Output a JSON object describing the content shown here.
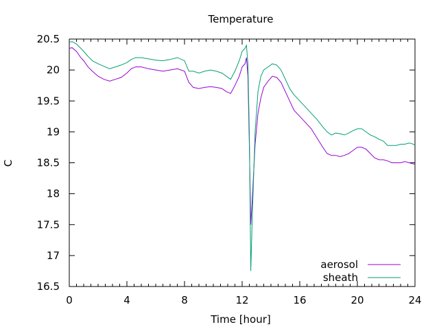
{
  "chart_data": {
    "type": "line",
    "title": "Temperature",
    "xlabel": "Time [hour]",
    "ylabel": "C",
    "xlim": [
      0,
      24
    ],
    "ylim": [
      16.5,
      20.5
    ],
    "x_ticks": [
      0,
      4,
      8,
      12,
      16,
      20,
      24
    ],
    "y_ticks": [
      16.5,
      17,
      17.5,
      18,
      18.5,
      19,
      19.5,
      20,
      20.5
    ],
    "legend_position": "bottom-right",
    "grid": false,
    "series": [
      {
        "name": "aerosol",
        "color": "#9400d3",
        "x": [
          0,
          0.2,
          0.5,
          0.8,
          1.0,
          1.3,
          1.6,
          2.0,
          2.4,
          2.8,
          3.2,
          3.6,
          4.0,
          4.3,
          4.6,
          5.0,
          5.5,
          6.0,
          6.5,
          7.0,
          7.5,
          8.0,
          8.3,
          8.6,
          9.0,
          9.4,
          9.8,
          10.2,
          10.6,
          10.9,
          11.2,
          11.5,
          11.8,
          12.0,
          12.2,
          12.3,
          12.4,
          12.5,
          12.6,
          12.7,
          12.9,
          13.1,
          13.3,
          13.5,
          13.8,
          14.1,
          14.4,
          14.7,
          15.0,
          15.3,
          15.6,
          16.0,
          16.4,
          16.8,
          17.2,
          17.6,
          17.9,
          18.2,
          18.5,
          18.8,
          19.1,
          19.4,
          19.7,
          20.0,
          20.3,
          20.6,
          20.9,
          21.2,
          21.5,
          21.8,
          22.1,
          22.4,
          22.7,
          23.0,
          23.3,
          23.6,
          23.9,
          24.0
        ],
        "values": [
          20.35,
          20.36,
          20.3,
          20.2,
          20.15,
          20.05,
          19.98,
          19.9,
          19.85,
          19.82,
          19.85,
          19.88,
          19.95,
          20.02,
          20.05,
          20.05,
          20.02,
          20.0,
          19.98,
          20.0,
          20.02,
          19.98,
          19.8,
          19.72,
          19.7,
          19.72,
          19.73,
          19.72,
          19.7,
          19.65,
          19.62,
          19.75,
          19.9,
          20.05,
          20.1,
          20.2,
          19.9,
          18.8,
          17.5,
          17.9,
          18.8,
          19.3,
          19.55,
          19.72,
          19.82,
          19.9,
          19.88,
          19.8,
          19.65,
          19.5,
          19.35,
          19.25,
          19.15,
          19.05,
          18.9,
          18.75,
          18.65,
          18.62,
          18.62,
          18.6,
          18.62,
          18.65,
          18.7,
          18.75,
          18.75,
          18.72,
          18.65,
          18.58,
          18.55,
          18.55,
          18.53,
          18.5,
          18.5,
          18.5,
          18.52,
          18.5,
          18.48,
          18.48
        ]
      },
      {
        "name": "sheath",
        "color": "#009e73",
        "x": [
          0,
          0.2,
          0.5,
          0.8,
          1.0,
          1.3,
          1.6,
          2.0,
          2.4,
          2.8,
          3.2,
          3.6,
          4.0,
          4.3,
          4.6,
          5.0,
          5.5,
          6.0,
          6.5,
          7.0,
          7.5,
          8.0,
          8.3,
          8.6,
          9.0,
          9.4,
          9.8,
          10.2,
          10.6,
          10.9,
          11.2,
          11.5,
          11.8,
          12.0,
          12.2,
          12.3,
          12.4,
          12.5,
          12.6,
          12.7,
          12.9,
          13.1,
          13.3,
          13.5,
          13.8,
          14.1,
          14.4,
          14.7,
          15.0,
          15.3,
          15.6,
          16.0,
          16.4,
          16.8,
          17.2,
          17.6,
          17.9,
          18.2,
          18.5,
          18.8,
          19.1,
          19.4,
          19.7,
          20.0,
          20.3,
          20.6,
          20.9,
          21.2,
          21.5,
          21.8,
          22.1,
          22.4,
          22.7,
          23.0,
          23.3,
          23.6,
          23.9,
          24.0
        ],
        "values": [
          20.45,
          20.46,
          20.42,
          20.35,
          20.3,
          20.22,
          20.15,
          20.1,
          20.06,
          20.02,
          20.05,
          20.08,
          20.12,
          20.17,
          20.2,
          20.2,
          20.18,
          20.16,
          20.15,
          20.17,
          20.2,
          20.15,
          19.98,
          19.98,
          19.95,
          19.98,
          20.0,
          19.98,
          19.95,
          19.9,
          19.85,
          19.98,
          20.15,
          20.3,
          20.35,
          20.4,
          20.1,
          19.0,
          16.75,
          17.6,
          19.0,
          19.65,
          19.9,
          20.0,
          20.05,
          20.1,
          20.08,
          20.0,
          19.85,
          19.7,
          19.6,
          19.5,
          19.4,
          19.3,
          19.2,
          19.08,
          19.0,
          18.95,
          18.98,
          18.97,
          18.95,
          18.98,
          19.02,
          19.05,
          19.05,
          19.0,
          18.95,
          18.92,
          18.88,
          18.85,
          18.78,
          18.78,
          18.78,
          18.8,
          18.8,
          18.82,
          18.8,
          18.78
        ]
      }
    ]
  }
}
